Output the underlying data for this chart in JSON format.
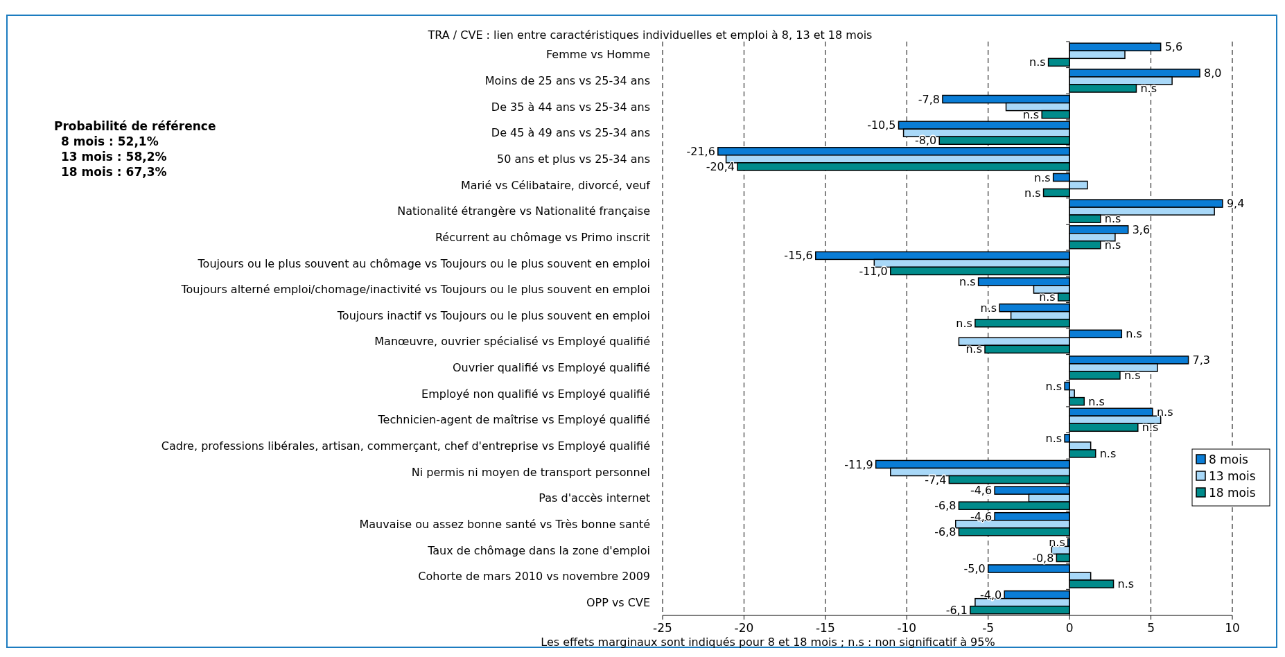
{
  "chart_data": {
    "type": "bar",
    "orientation": "horizontal",
    "title": "TRA / CVE : lien entre caractéristiques individuelles et emploi à 8, 13 et 18 mois",
    "xlabel": "Les effets marginaux sont indiqués pour 8 et 18 mois ; n.s : non significatif à 95%",
    "annotations": [
      "Probabilité de référence",
      "8 mois : 52,1%",
      "13 mois : 58,2%",
      "18 mois : 67,3%"
    ],
    "categories": [
      "Femme vs Homme",
      "Moins de 25 ans vs 25-34 ans",
      "De 35 à 44 ans vs 25-34 ans",
      "De 45 à 49 ans vs 25-34 ans",
      "50 ans et plus vs 25-34 ans",
      "Marié vs Célibataire, divorcé, veuf",
      "Nationalité étrangère vs Nationalité française",
      "Récurrent au chômage vs Primo inscrit",
      "Toujours ou le plus souvent au chômage vs Toujours ou le plus souvent en emploi",
      "Toujours alterné emploi/chomage/inactivité vs Toujours ou le plus souvent en emploi",
      "Toujours inactif vs Toujours ou le plus souvent en emploi",
      "Manœuvre, ouvrier spécialisé vs Employé qualifié",
      "Ouvrier qualifié vs Employé qualifié",
      "Employé non qualifié vs Employé qualifié",
      "Technicien-agent de maîtrise vs Employé qualifié",
      "Cadre, professions libérales, artisan, commerçant, chef d'entreprise vs Employé qualifié",
      "Ni permis ni moyen de transport personnel",
      "Pas d'accès internet",
      "Mauvaise ou assez bonne santé vs Très bonne santé",
      "Taux de chômage dans la zone d'emploi",
      "Cohorte de mars 2010 vs novembre 2009",
      "OPP vs CVE"
    ],
    "series": [
      {
        "name": "8 mois",
        "color": "#0a7dd6",
        "values": [
          5.6,
          8.0,
          -7.8,
          -10.5,
          -21.6,
          -1.0,
          9.4,
          3.6,
          -15.6,
          -5.6,
          -4.3,
          3.2,
          7.3,
          -0.3,
          5.1,
          -0.3,
          -11.9,
          -4.6,
          -4.6,
          -0.1,
          -5.0,
          -4.0
        ],
        "value_labels": [
          "5,6",
          "8,0",
          "-7,8",
          "-10,5",
          "-21,6",
          "n.s",
          "9,4",
          "3,6",
          "-15,6",
          "n.s",
          "n.s",
          "n.s",
          "7,3",
          "n.s",
          "n.s",
          "n.s",
          "-11,9",
          "-4,6",
          "-4,6",
          "n.s",
          "-5,0",
          "-4,0"
        ]
      },
      {
        "name": "13 mois",
        "color": "#a8d8f8",
        "values": [
          3.4,
          6.3,
          -3.9,
          -10.2,
          -21.1,
          1.1,
          8.9,
          2.8,
          -12.0,
          -2.2,
          -3.6,
          -6.8,
          5.4,
          0.3,
          5.6,
          1.3,
          -11.0,
          -2.5,
          -7.0,
          -1.1,
          1.3,
          -5.8
        ]
      },
      {
        "name": "18 mois",
        "color": "#008b8b",
        "values": [
          -1.3,
          4.1,
          -1.7,
          -8.0,
          -20.4,
          -1.6,
          1.9,
          1.9,
          -11.0,
          -0.7,
          -5.8,
          -5.2,
          3.1,
          0.9,
          4.2,
          1.6,
          -7.4,
          -6.8,
          -6.8,
          -0.8,
          2.7,
          -6.1
        ],
        "value_labels": [
          "n.s",
          "n.s",
          "n.s",
          "-8,0",
          "-20,4",
          "n.s",
          "n.s",
          "n.s",
          "-11,0",
          "n.s",
          "n.s",
          "n.s",
          "n.s",
          "n.s",
          "n.s",
          "n.s",
          "-7,4",
          "-6,8",
          "-6,8",
          "-0,8",
          "n.s",
          "-6,1"
        ]
      }
    ],
    "xlim": [
      -25,
      10
    ],
    "xticks": [
      -25,
      -20,
      -15,
      -10,
      -5,
      0,
      5,
      10
    ],
    "grid": "x",
    "legend": "right"
  }
}
